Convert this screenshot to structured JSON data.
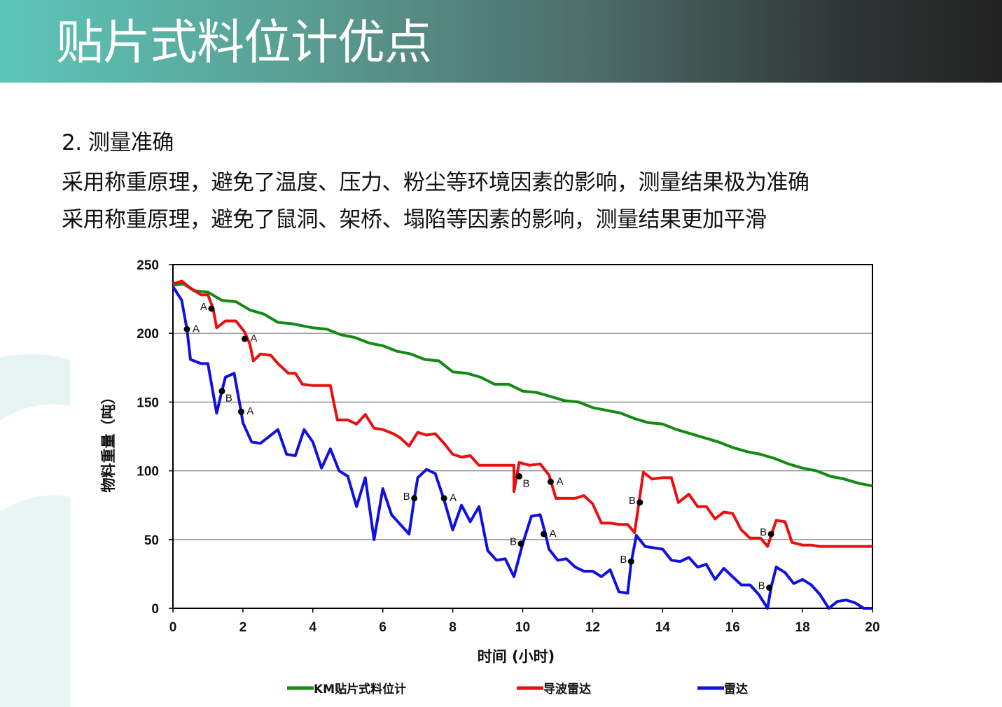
{
  "header": {
    "title": "贴片式料位计优点"
  },
  "content": {
    "point_heading": "2. 测量准确",
    "lines": [
      "采用称重原理，避免了温度、压力、粉尘等环境因素的影响，测量结果极为准确",
      "采用称重原理，避免了鼠洞、架桥、塌陷等因素的影响，测量结果更加平滑"
    ]
  },
  "chart_data": {
    "type": "line",
    "xlabel": "时间 (小时)",
    "ylabel": "物料重量（吨）",
    "xlim": [
      0,
      20
    ],
    "ylim": [
      0,
      250
    ],
    "xticks": [
      0,
      2,
      4,
      6,
      8,
      10,
      12,
      14,
      16,
      18,
      20
    ],
    "yticks": [
      0,
      50,
      100,
      150,
      200,
      250
    ],
    "grid": "horizontal",
    "legend": "bottom",
    "series": [
      {
        "name": "KM贴片式料位计",
        "color": "#138a13",
        "points": [
          [
            0,
            235
          ],
          [
            0.3,
            236
          ],
          [
            0.6,
            231
          ],
          [
            1,
            230
          ],
          [
            1.4,
            224
          ],
          [
            1.8,
            223
          ],
          [
            2.2,
            217
          ],
          [
            2.6,
            214
          ],
          [
            3,
            208
          ],
          [
            3.4,
            207
          ],
          [
            4,
            204
          ],
          [
            4.4,
            203
          ],
          [
            4.8,
            199
          ],
          [
            5.2,
            197
          ],
          [
            5.6,
            193
          ],
          [
            6,
            191
          ],
          [
            6.4,
            187
          ],
          [
            6.8,
            185
          ],
          [
            7.2,
            181
          ],
          [
            7.6,
            180
          ],
          [
            8,
            172
          ],
          [
            8.4,
            171
          ],
          [
            8.8,
            168
          ],
          [
            9.2,
            163
          ],
          [
            9.6,
            163
          ],
          [
            10,
            158
          ],
          [
            10.4,
            157
          ],
          [
            10.8,
            154
          ],
          [
            11.2,
            151
          ],
          [
            11.6,
            150
          ],
          [
            12,
            146
          ],
          [
            12.4,
            144
          ],
          [
            12.8,
            142
          ],
          [
            13.2,
            138
          ],
          [
            13.6,
            135
          ],
          [
            14,
            134
          ],
          [
            14.4,
            130
          ],
          [
            14.8,
            127
          ],
          [
            15.2,
            124
          ],
          [
            15.6,
            121
          ],
          [
            16,
            117
          ],
          [
            16.4,
            114
          ],
          [
            16.8,
            112
          ],
          [
            17.2,
            109
          ],
          [
            17.6,
            105
          ],
          [
            18,
            102
          ],
          [
            18.4,
            100
          ],
          [
            18.8,
            96
          ],
          [
            19.2,
            94
          ],
          [
            19.6,
            91
          ],
          [
            20,
            89
          ]
        ]
      },
      {
        "name": "导波雷达",
        "color": "#e81010",
        "points": [
          [
            0,
            236
          ],
          [
            0.25,
            238
          ],
          [
            0.5,
            233
          ],
          [
            0.8,
            228
          ],
          [
            1,
            228
          ],
          [
            1.15,
            218
          ],
          [
            1.25,
            204
          ],
          [
            1.5,
            209
          ],
          [
            1.8,
            209
          ],
          [
            2.05,
            201
          ],
          [
            2.2,
            192
          ],
          [
            2.3,
            180
          ],
          [
            2.5,
            185
          ],
          [
            2.8,
            184
          ],
          [
            3,
            178
          ],
          [
            3.3,
            171
          ],
          [
            3.5,
            171
          ],
          [
            3.7,
            163
          ],
          [
            4,
            162
          ],
          [
            4.5,
            162
          ],
          [
            4.7,
            137
          ],
          [
            5,
            137
          ],
          [
            5.25,
            134
          ],
          [
            5.5,
            141
          ],
          [
            5.75,
            131
          ],
          [
            6,
            130
          ],
          [
            6.3,
            127
          ],
          [
            6.5,
            124
          ],
          [
            6.75,
            118
          ],
          [
            7,
            128
          ],
          [
            7.25,
            126
          ],
          [
            7.5,
            127
          ],
          [
            7.75,
            120
          ],
          [
            8,
            112
          ],
          [
            8.25,
            110
          ],
          [
            8.5,
            111
          ],
          [
            8.75,
            104
          ],
          [
            9,
            104
          ],
          [
            9.5,
            104
          ],
          [
            9.75,
            104
          ],
          [
            9.75,
            104
          ],
          [
            9.75,
            104
          ],
          [
            9.75,
            104
          ],
          [
            9.75,
            104
          ],
          [
            9.75,
            104
          ],
          [
            9.75,
            104
          ],
          [
            9.75,
            104
          ],
          [
            9.75,
            104
          ],
          [
            9.75,
            104
          ],
          [
            9.75,
            104
          ],
          [
            9.75,
            104
          ],
          [
            9.75,
            104
          ],
          [
            9.75,
            104
          ],
          [
            9.75,
            104
          ],
          [
            9.75,
            104
          ],
          [
            9.75,
            104
          ],
          [
            9.75,
            104
          ],
          [
            9.75,
            104
          ],
          [
            9.75,
            104
          ],
          [
            9.75,
            104
          ],
          [
            9.75,
            104
          ],
          [
            9.75,
            104
          ],
          [
            9.75,
            104
          ],
          [
            9.75,
            104
          ],
          [
            9.75,
            104
          ],
          [
            9.75,
            104
          ],
          [
            9.75,
            104
          ],
          [
            9.75,
            104
          ],
          [
            9.75,
            104
          ],
          [
            9.75,
            104
          ],
          [
            9.75,
            104
          ],
          [
            9.75,
            104
          ],
          [
            9.75,
            104
          ],
          [
            9.75,
            104
          ],
          [
            9.75,
            104
          ],
          [
            9.75,
            104
          ],
          [
            9.75,
            104
          ],
          [
            9.75,
            104
          ],
          [
            9.75,
            104
          ],
          [
            9.75,
            104
          ],
          [
            9.75,
            104
          ],
          [
            9.75,
            104
          ],
          [
            9.75,
            104
          ],
          [
            9.75,
            104
          ],
          [
            9.75,
            104
          ],
          [
            9.75,
            104
          ],
          [
            9.75,
            104
          ],
          [
            9.75,
            104
          ],
          [
            9.75,
            104
          ],
          [
            9.75,
            104
          ],
          [
            9.75,
            104
          ],
          [
            9.75,
            104
          ],
          [
            9.75,
            104
          ],
          [
            9.75,
            104
          ],
          [
            9.75,
            104
          ],
          [
            9.75,
            104
          ],
          [
            9.75,
            104
          ],
          [
            9.75,
            104
          ],
          [
            9.75,
            104
          ],
          [
            9.75,
            104
          ],
          [
            9.75,
            104
          ],
          [
            9.75,
            104
          ]
        ]
      },
      {
        "name": "雷达",
        "color": "#1010e0",
        "points": [
          [
            0,
            234
          ],
          [
            0.25,
            224
          ],
          [
            0.4,
            203
          ],
          [
            0.5,
            181
          ],
          [
            0.8,
            178
          ],
          [
            1,
            178
          ],
          [
            1.25,
            142
          ],
          [
            1.4,
            158
          ],
          [
            1.5,
            168
          ],
          [
            1.75,
            171
          ],
          [
            1.95,
            143
          ],
          [
            2,
            135
          ],
          [
            2.25,
            121
          ],
          [
            2.5,
            120
          ],
          [
            2.75,
            125
          ],
          [
            3,
            130
          ],
          [
            3.25,
            112
          ],
          [
            3.5,
            111
          ],
          [
            3.75,
            130
          ],
          [
            4,
            121
          ],
          [
            4.25,
            102
          ],
          [
            4.5,
            116
          ],
          [
            4.75,
            100
          ],
          [
            5,
            96
          ],
          [
            5.25,
            74
          ],
          [
            5.5,
            95
          ],
          [
            5.75,
            50
          ],
          [
            6,
            87
          ],
          [
            6.25,
            68
          ],
          [
            6.5,
            61
          ],
          [
            6.75,
            54
          ],
          [
            6.9,
            80
          ],
          [
            7,
            95
          ],
          [
            7.25,
            101
          ],
          [
            7.5,
            98
          ],
          [
            7.75,
            79
          ],
          [
            8,
            57
          ],
          [
            8.25,
            75
          ],
          [
            8.5,
            63
          ],
          [
            8.75,
            74
          ],
          [
            9,
            42
          ],
          [
            9.25,
            35
          ],
          [
            9.5,
            36
          ],
          [
            9.75,
            23
          ],
          [
            10,
            47
          ],
          [
            10.25,
            67
          ],
          [
            10.5,
            68
          ],
          [
            10.65,
            54
          ],
          [
            10.75,
            43
          ],
          [
            11,
            35
          ],
          [
            11.25,
            36
          ],
          [
            11.5,
            30
          ],
          [
            11.75,
            27
          ],
          [
            12,
            27
          ],
          [
            12.25,
            23
          ],
          [
            12.5,
            28
          ],
          [
            12.75,
            12
          ],
          [
            13,
            11
          ],
          [
            13.1,
            33
          ],
          [
            13.25,
            53
          ],
          [
            13.5,
            45
          ],
          [
            13.75,
            44
          ],
          [
            14,
            43
          ],
          [
            14.25,
            35
          ],
          [
            14.5,
            34
          ],
          [
            14.75,
            37
          ],
          [
            15,
            30
          ],
          [
            15.25,
            32
          ],
          [
            15.5,
            21
          ],
          [
            15.75,
            29
          ],
          [
            16,
            23
          ],
          [
            16.25,
            17
          ],
          [
            16.5,
            17
          ],
          [
            16.75,
            10
          ],
          [
            17,
            0
          ],
          [
            17.1,
            15
          ],
          [
            17.25,
            30
          ],
          [
            17.5,
            26
          ],
          [
            17.75,
            18
          ],
          [
            18,
            21
          ],
          [
            18.25,
            17
          ],
          [
            18.5,
            10
          ],
          [
            18.75,
            0
          ],
          [
            19,
            5
          ],
          [
            19.25,
            6
          ],
          [
            19.5,
            4
          ],
          [
            19.75,
            0
          ],
          [
            20,
            0
          ]
        ]
      }
    ],
    "annotations": [
      {
        "series": "导波雷达",
        "label": "A",
        "x": 1.1,
        "y": 218,
        "side": "left"
      },
      {
        "series": "雷达",
        "label": "A",
        "x": 0.4,
        "y": 203,
        "side": "right"
      },
      {
        "series": "导波雷达",
        "label": "A",
        "x": 2.05,
        "y": 196,
        "side": "right"
      },
      {
        "series": "雷达",
        "label": "B",
        "x": 1.4,
        "y": 158,
        "side": "right-below"
      },
      {
        "series": "雷达",
        "label": "A",
        "x": 1.95,
        "y": 143,
        "side": "right"
      },
      {
        "series": "导波雷达",
        "label": "B",
        "x": 9.9,
        "y": 96,
        "side": "right-below"
      },
      {
        "series": "导波雷达",
        "label": "A",
        "x": 10.8,
        "y": 92,
        "side": "right"
      },
      {
        "series": "雷达",
        "label": "B",
        "x": 6.9,
        "y": 80,
        "side": "left"
      },
      {
        "series": "雷达",
        "label": "A",
        "x": 7.75,
        "y": 80,
        "side": "right"
      },
      {
        "series": "雷达",
        "label": "B",
        "x": 9.95,
        "y": 47,
        "side": "left"
      },
      {
        "series": "雷达",
        "label": "A",
        "x": 10.6,
        "y": 54,
        "side": "right"
      },
      {
        "series": "导波雷达",
        "label": "B",
        "x": 13.35,
        "y": 77,
        "side": "left"
      },
      {
        "series": "雷达",
        "label": "B",
        "x": 13.1,
        "y": 34,
        "side": "left"
      },
      {
        "series": "导波雷达",
        "label": "B",
        "x": 17.1,
        "y": 54,
        "side": "left"
      },
      {
        "series": "雷达",
        "label": "B",
        "x": 17.05,
        "y": 15,
        "side": "left"
      }
    ]
  }
}
